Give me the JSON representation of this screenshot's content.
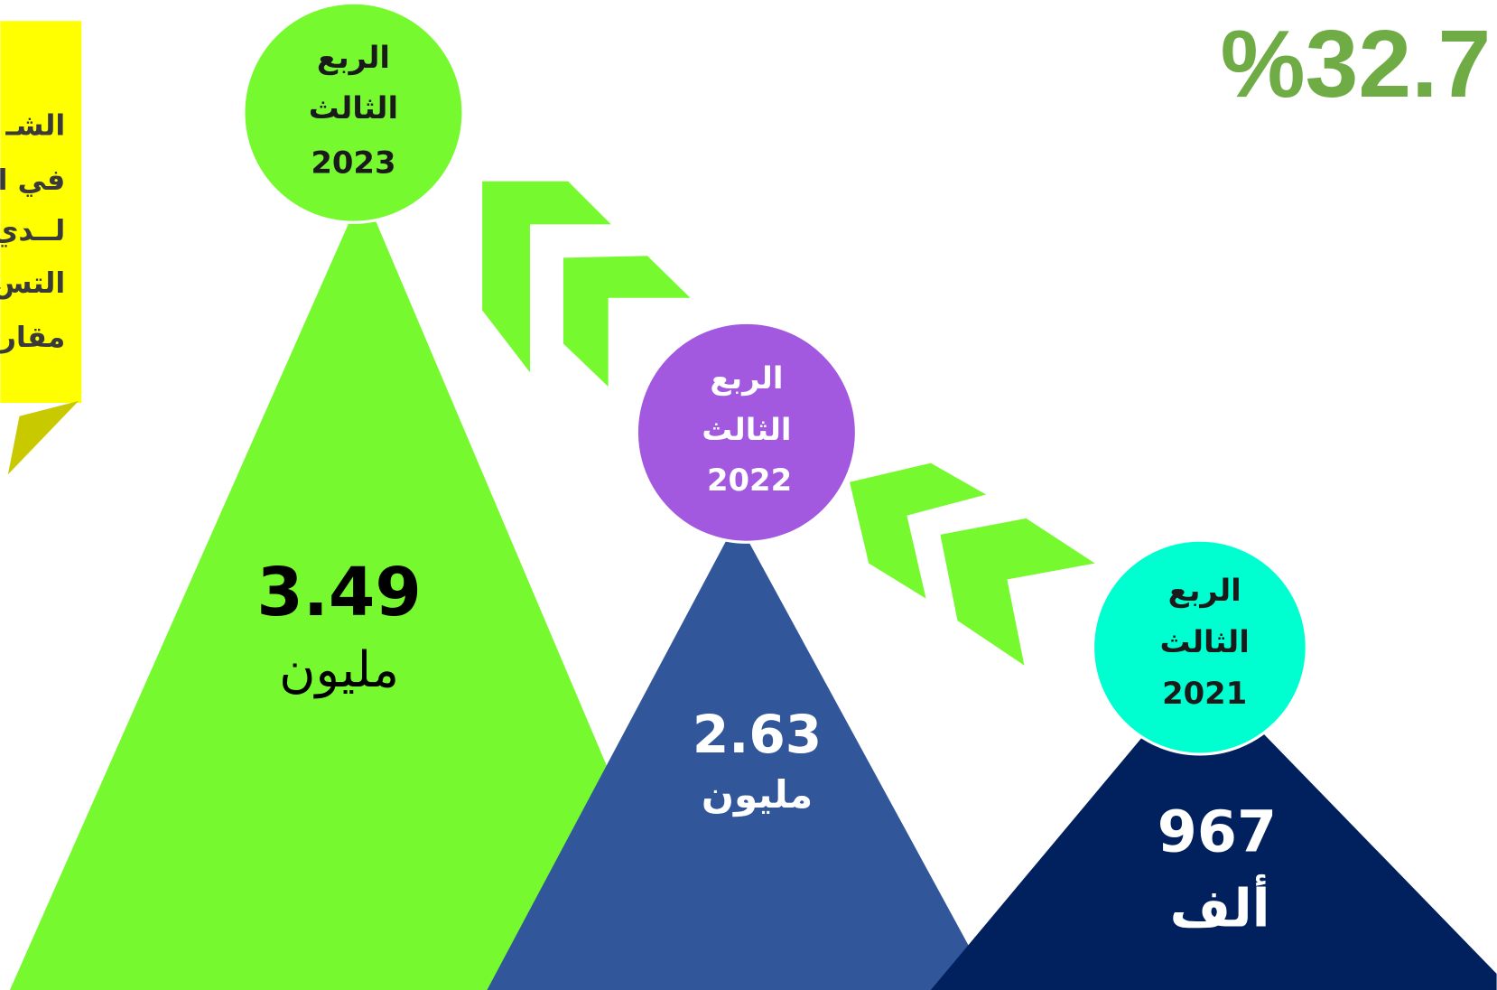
{
  "headline": "%32.7",
  "note": {
    "lines": [
      "الشـ",
      "في ا",
      "لــدي",
      "التس",
      "مقار"
    ]
  },
  "peaks": [
    {
      "quarter": "الربع",
      "ordinal": "الثالث",
      "year": "2023",
      "value": "3.49",
      "unit": "مليون"
    },
    {
      "quarter": "الربع",
      "ordinal": "الثالث",
      "year": "2022",
      "value": "2.63",
      "unit": "مليون"
    },
    {
      "quarter": "الربع",
      "ordinal": "الثالث",
      "year": "2021",
      "value": "967",
      "unit": "ألف"
    }
  ]
}
